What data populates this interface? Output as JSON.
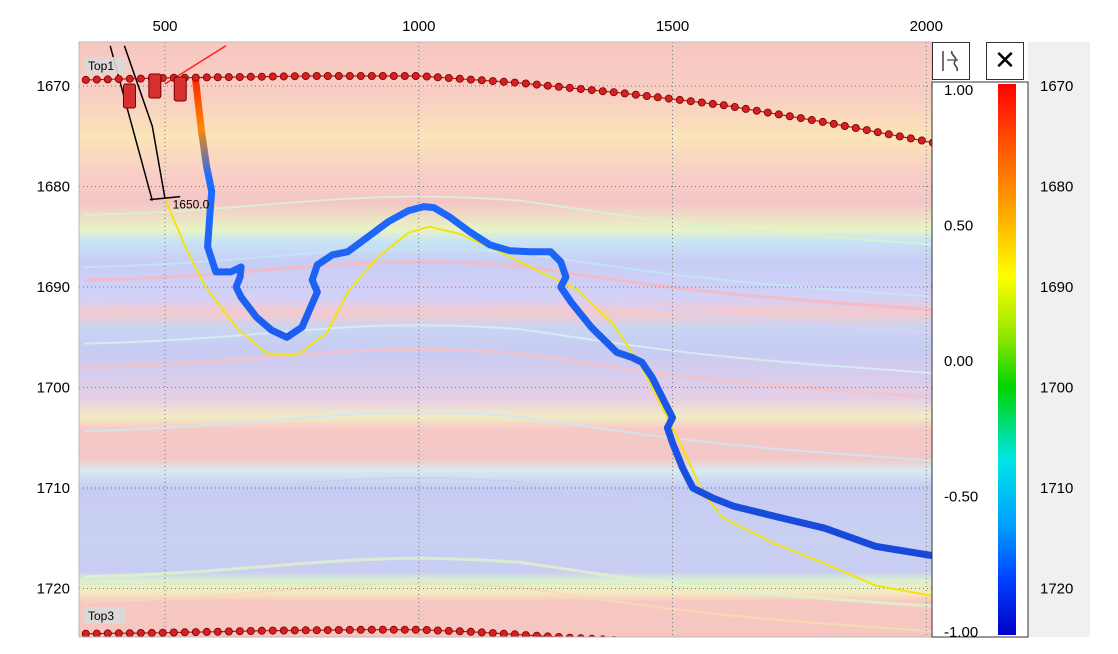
{
  "toolbar": {
    "wiggle_icon": "wiggle-trace-icon",
    "close_icon": "close-icon",
    "close_glyph": "✕"
  },
  "colors": {
    "axis_background": "#f0f0f0",
    "red_top": "#d42020",
    "yellow_line": "#f2e40f",
    "black_line": "#000000"
  },
  "chart_data": {
    "type": "line",
    "title": "",
    "x_ticks": [
      500,
      1000,
      1500,
      2000
    ],
    "xlim": [
      340,
      2020
    ],
    "y_ticks_left": [
      1670,
      1680,
      1690,
      1700,
      1710,
      1720
    ],
    "y_ticks_right": [
      1670,
      1680,
      1690,
      1700,
      1710,
      1720
    ],
    "ylim": [
      1665.7,
      1724.9
    ],
    "inverted_y": true,
    "grid": "dotted",
    "markers": [
      {
        "label": "Top1",
        "x_start": 340,
        "x_end": 2020,
        "points": [
          [
            340,
            1669.4
          ],
          [
            500,
            1669.2
          ],
          [
            800,
            1669.0
          ],
          [
            1000,
            1669.0
          ],
          [
            1200,
            1669.7
          ],
          [
            1400,
            1670.7
          ],
          [
            1600,
            1671.9
          ],
          [
            1800,
            1673.6
          ],
          [
            2020,
            1675.7
          ]
        ]
      },
      {
        "label": "Top3",
        "x_start": 340,
        "x_end": 1450,
        "points": [
          [
            340,
            1724.5
          ],
          [
            500,
            1724.4
          ],
          [
            700,
            1724.2
          ],
          [
            900,
            1724.1
          ],
          [
            1000,
            1724.1
          ],
          [
            1100,
            1724.3
          ],
          [
            1200,
            1724.6
          ],
          [
            1300,
            1724.9
          ],
          [
            1450,
            1725.3
          ]
        ]
      }
    ],
    "well_label": "1650.0",
    "well_path": [
      [
        420,
        1666
      ],
      [
        475,
        1674
      ],
      [
        500,
        1681.2
      ]
    ],
    "well_tick": [
      [
        470,
        1681.3
      ],
      [
        530,
        1681.0
      ]
    ],
    "planned_path": [
      [
        500,
        1681.2
      ],
      [
        540,
        1686
      ],
      [
        580,
        1690
      ],
      [
        640,
        1694
      ],
      [
        700,
        1696.6
      ],
      [
        760,
        1696.8
      ],
      [
        820,
        1694.5
      ],
      [
        860,
        1690.5
      ],
      [
        920,
        1687
      ],
      [
        980,
        1684.6
      ],
      [
        1020,
        1684
      ],
      [
        1080,
        1684.7
      ],
      [
        1160,
        1686.5
      ],
      [
        1240,
        1688.5
      ],
      [
        1310,
        1690.2
      ],
      [
        1380,
        1693.5
      ],
      [
        1440,
        1698
      ],
      [
        1480,
        1702
      ],
      [
        1520,
        1706
      ],
      [
        1560,
        1710.5
      ],
      [
        1600,
        1713
      ],
      [
        1700,
        1715.5
      ],
      [
        1800,
        1717.5
      ],
      [
        1900,
        1719.7
      ],
      [
        2020,
        1720.8
      ]
    ],
    "drilled_path": [
      [
        560,
        1669.2
      ],
      [
        565,
        1671.5
      ],
      [
        572,
        1674.5
      ],
      [
        582,
        1678
      ],
      [
        592,
        1680.5
      ],
      [
        588,
        1683
      ],
      [
        584,
        1686
      ],
      [
        600,
        1688.5
      ],
      [
        630,
        1688.5
      ],
      [
        650,
        1688
      ],
      [
        648,
        1689
      ],
      [
        640,
        1690
      ],
      [
        650,
        1691
      ],
      [
        680,
        1693
      ],
      [
        710,
        1694.3
      ],
      [
        740,
        1695
      ],
      [
        770,
        1694
      ],
      [
        800,
        1690.5
      ],
      [
        790,
        1689.3
      ],
      [
        800,
        1687.8
      ],
      [
        830,
        1686.8
      ],
      [
        860,
        1686.5
      ],
      [
        900,
        1685
      ],
      [
        940,
        1683.5
      ],
      [
        980,
        1682.4
      ],
      [
        1010,
        1682
      ],
      [
        1030,
        1682.1
      ],
      [
        1060,
        1683
      ],
      [
        1100,
        1684.5
      ],
      [
        1140,
        1685.8
      ],
      [
        1180,
        1686.4
      ],
      [
        1220,
        1686.5
      ],
      [
        1260,
        1686.5
      ],
      [
        1280,
        1687.5
      ],
      [
        1290,
        1689
      ],
      [
        1280,
        1690
      ],
      [
        1300,
        1691.5
      ],
      [
        1340,
        1694
      ],
      [
        1390,
        1696.5
      ],
      [
        1420,
        1697
      ],
      [
        1440,
        1697.5
      ],
      [
        1460,
        1699
      ],
      [
        1480,
        1701
      ],
      [
        1500,
        1703
      ],
      [
        1490,
        1704
      ],
      [
        1500,
        1705.5
      ],
      [
        1520,
        1708
      ],
      [
        1540,
        1710
      ],
      [
        1580,
        1711
      ],
      [
        1620,
        1711.8
      ],
      [
        1700,
        1712.8
      ],
      [
        1800,
        1714
      ],
      [
        1900,
        1715.8
      ],
      [
        2020,
        1716.8
      ]
    ],
    "colorbar": {
      "ticks": [
        "1.00",
        "0.50",
        "0.00",
        "-0.50",
        "-1.00"
      ],
      "range": [
        -1,
        1
      ]
    }
  }
}
